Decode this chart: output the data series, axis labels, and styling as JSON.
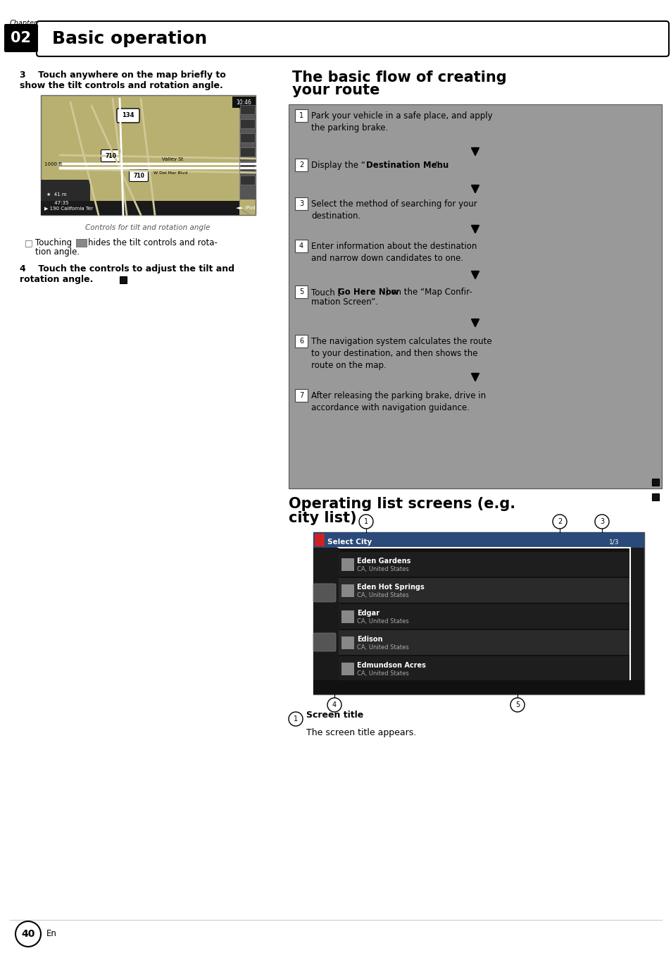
{
  "page_bg": "#ffffff",
  "chapter_label": "Chapter",
  "chapter_num": "02",
  "chapter_title": "Basic operation",
  "page_num": "40",
  "flow_bg": "#999999",
  "flow_border": "#555555",
  "flow_items": [
    {
      "num": "1",
      "text": "Park your vehicle in a safe place, and apply\nthe parking brake.",
      "bold": null
    },
    {
      "num": "2",
      "pre": "Display the “",
      "bold": "Destination Menu",
      "post": "”."
    },
    {
      "num": "3",
      "text": "Select the method of searching for your\ndestination.",
      "bold": null
    },
    {
      "num": "4",
      "text": "Enter information about the destination\nand narrow down candidates to one.",
      "bold": null
    },
    {
      "num": "5",
      "pre": "Touch [",
      "bold": "Go Here Now",
      "post": "] on the “Map Confir-\nmation Screen”."
    },
    {
      "num": "6",
      "text": "The navigation system calculates the route\nto your destination, and then shows the\nroute on the map.",
      "bold": null
    },
    {
      "num": "7",
      "text": "After releasing the parking brake, drive in\naccordance with navigation guidance.",
      "bold": null
    }
  ]
}
